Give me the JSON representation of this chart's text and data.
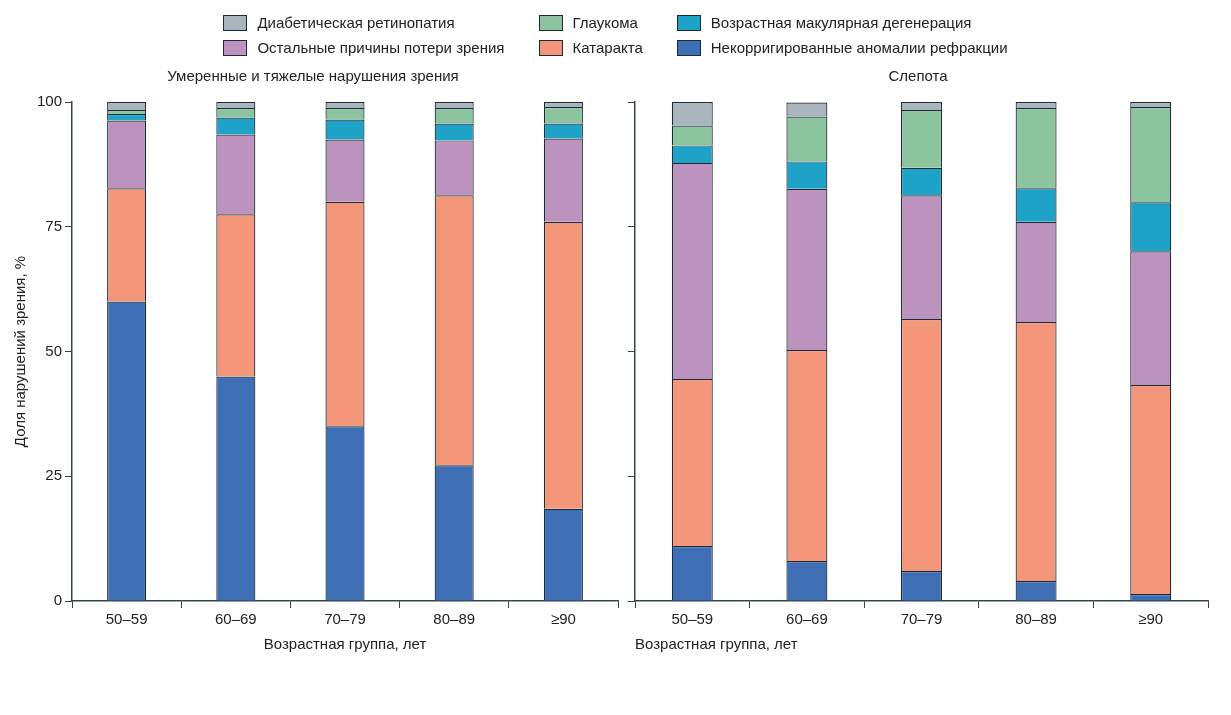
{
  "chart_data": [
    {
      "type": "bar",
      "title": "Умеренные и тяжелые нарушения зрения",
      "xlabel": "Возрастная группа, лет",
      "ylabel": "Доля нарушений зрения, %",
      "categories": [
        "50–59",
        "60–69",
        "70–79",
        "80–89",
        "≥90"
      ],
      "stacked": true,
      "ylim": [
        0,
        100
      ],
      "yticks": [
        0,
        25,
        50,
        75,
        100
      ],
      "legend": "top",
      "series": [
        {
          "name": "Некорригированные аномалии рефракции",
          "color": "#3e6fb5",
          "values": [
            60,
            45,
            35,
            27.2,
            18.5
          ]
        },
        {
          "name": "Катаракта",
          "color": "#f4967a",
          "values": [
            22.7,
            32.5,
            45,
            54.1,
            57.5
          ]
        },
        {
          "name": "Остальные причины потери зрения",
          "color": "#bb93be",
          "values": [
            13.6,
            16,
            12.5,
            11,
            16.7
          ]
        },
        {
          "name": "Возрастная макулярная дегенерация",
          "color": "#1ea2c8",
          "values": [
            1.3,
            3.4,
            4,
            3.4,
            3
          ]
        },
        {
          "name": "Глаукома",
          "color": "#8dc4a0",
          "values": [
            0.8,
            1.9,
            2.3,
            3.1,
            3.3
          ]
        },
        {
          "name": "Диабетическая ретинопатия",
          "color": "#a9b4bd",
          "values": [
            1.6,
            1.2,
            1.2,
            1.2,
            1
          ]
        }
      ]
    },
    {
      "type": "bar",
      "title": "Слепота",
      "xlabel": "Возрастная группа, лет",
      "categories": [
        "50–59",
        "60–69",
        "70–79",
        "80–89",
        "≥90"
      ],
      "stacked": true,
      "ylim": [
        0,
        100
      ],
      "yticks": [
        0,
        25,
        50,
        75,
        100
      ],
      "tick_labels": "x",
      "series": [
        {
          "color": "#3e6fb5",
          "values": [
            11,
            8,
            6,
            4,
            1.4
          ]
        },
        {
          "color": "#f4967a",
          "values": [
            33.5,
            42.3,
            50.5,
            51.9,
            41.9
          ]
        },
        {
          "color": "#bb93be",
          "values": [
            43.3,
            32.3,
            24.8,
            20.1,
            26.8
          ]
        },
        {
          "color": "#1ea2c8",
          "values": [
            3.5,
            5.5,
            5.5,
            6.7,
            9.8
          ]
        },
        {
          "color": "#8dc4a0",
          "values": [
            4,
            9,
            11.6,
            16.1,
            19.1
          ]
        },
        {
          "color": "#a9b4bd",
          "values": [
            4.7,
            2.8,
            1.6,
            1.2,
            1
          ]
        }
      ]
    }
  ]
}
